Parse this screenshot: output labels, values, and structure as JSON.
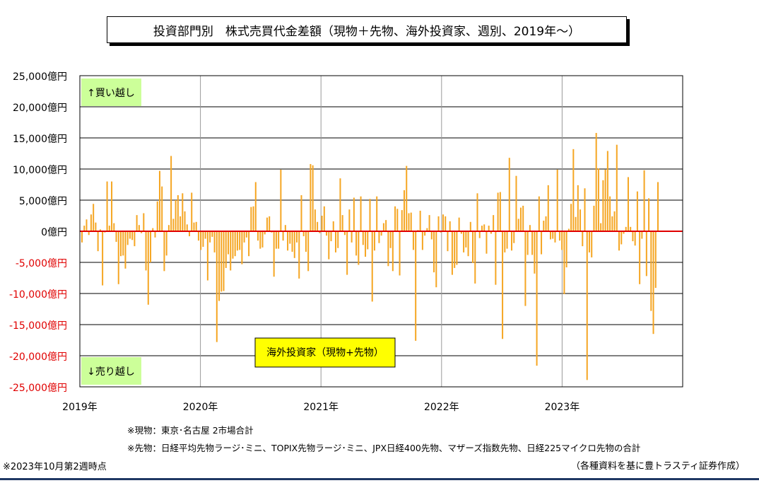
{
  "title": "投資部門別　株式売買代金差額（現物＋先物、海外投資家、週別、2019年～）",
  "chart_data": {
    "type": "bar",
    "series": [
      {
        "name": "海外投資家（現物+先物）",
        "color": "#f5a623"
      }
    ],
    "ylim": [
      -25000,
      25000
    ],
    "yticks": [
      {
        "value": 25000,
        "label": "25,000億円"
      },
      {
        "value": 20000,
        "label": "20,000億円"
      },
      {
        "value": 15000,
        "label": "15,000億円"
      },
      {
        "value": 10000,
        "label": "10,000億円"
      },
      {
        "value": 5000,
        "label": "5,000億円"
      },
      {
        "value": 0,
        "label": "0億円"
      },
      {
        "value": -5000,
        "label": "-5,000億円"
      },
      {
        "value": -10000,
        "label": "-10,000億円"
      },
      {
        "value": -15000,
        "label": "-15,000億円"
      },
      {
        "value": -20000,
        "label": "-20,000億円"
      },
      {
        "value": -25000,
        "label": "-25,000億円"
      }
    ],
    "xticks": [
      "2019年",
      "2020年",
      "2021年",
      "2022年",
      "2023年"
    ],
    "annotations": {
      "buy": "↑買い越し",
      "sell": "↓売り越し"
    },
    "legend_label": "海外投資家（現物+先物）",
    "grid": true,
    "zero_line_color": "#e00000",
    "values": [
      -1800,
      900,
      1900,
      -600,
      2700,
      4400,
      1400,
      -3200,
      300,
      -8700,
      -200,
      8000,
      900,
      8000,
      1300,
      -1700,
      -8500,
      -4000,
      -3900,
      -6000,
      -2200,
      -1200,
      -1400,
      -2400,
      2600,
      1000,
      -300,
      2900,
      -6300,
      -11800,
      -5000,
      500,
      -1000,
      4800,
      9700,
      7200,
      -6400,
      -3900,
      1000,
      12100,
      2000,
      5000,
      5800,
      2400,
      6100,
      3200,
      1100,
      -800,
      6200,
      1400,
      1500,
      -1500,
      -3000,
      -2500,
      -1200,
      -7900,
      -1800,
      -900,
      -3400,
      -17800,
      -11200,
      -9700,
      -9600,
      -5900,
      -3700,
      -6300,
      -4400,
      -4000,
      -3100,
      -3000,
      -5300,
      -1800,
      -1000,
      -4000,
      3900,
      4000,
      7900,
      -1500,
      -2800,
      -2600,
      -500,
      2200,
      2400,
      -200,
      -7300,
      -2800,
      -2800,
      9900,
      -1500,
      1000,
      -3100,
      -2000,
      -3300,
      -4300,
      -1800,
      -7600,
      5800,
      -800,
      -3300,
      -6400,
      10800,
      10600,
      3500,
      1500,
      -300,
      2500,
      4000,
      -700,
      -4500,
      -1600,
      1600,
      -3400,
      -2700,
      8500,
      2600,
      -600,
      -7000,
      3500,
      -1800,
      5400,
      -3900,
      -5400,
      5600,
      -2200,
      -4100,
      -2900,
      5200,
      -11300,
      -3100,
      5600,
      -1900,
      -700,
      1300,
      1800,
      -5600,
      -2700,
      -6400,
      4000,
      3600,
      -7100,
      3400,
      6600,
      10500,
      2900,
      3000,
      -3000,
      -17600,
      200,
      3300,
      -3000,
      -700,
      500,
      2600,
      -1300,
      -6600,
      -9000,
      2400,
      -200,
      2700,
      2400,
      -3200,
      1600,
      -7000,
      -5900,
      -5400,
      2200,
      -400,
      -3400,
      -2600,
      -4000,
      1500,
      -5100,
      -8400,
      6100,
      -1100,
      900,
      1100,
      -3600,
      900,
      -400,
      2600,
      -8600,
      6200,
      6300,
      -17300,
      -3400,
      -2800,
      11800,
      -3100,
      -1900,
      8900,
      2000,
      3800,
      4100,
      -12000,
      -3800,
      1000,
      -3800,
      -6800,
      -21600,
      5600,
      -3700,
      1700,
      2400,
      7400,
      -1300,
      -1200,
      -1800,
      9900,
      -1500,
      -3000,
      -10100,
      -5800,
      400,
      4400,
      13200,
      2300,
      7400,
      3500,
      -2400,
      6900,
      -23900,
      -3400,
      -4200,
      4100,
      15800,
      10100,
      1300,
      8200,
      9900,
      12900,
      5600,
      2400,
      3200,
      13900,
      -3100,
      -2100,
      -400,
      700,
      8700,
      700,
      -1600,
      -2300,
      6400,
      -8500,
      -1200,
      9800,
      -7200,
      5300,
      -12800,
      -16500,
      -9100,
      7900
    ]
  },
  "notes": {
    "legend_box": "海外投資家（現物+先物）",
    "spot": "※現物：東京･名古屋 2市場合計",
    "futures": "※先物：日経平均先物ラージ･ミニ、TOPIX先物ラージ･ミニ、JPX日経400先物、マザーズ指数先物、日経225マイクロ先物の合計",
    "as_of": "※2023年10月第2週時点",
    "source": "（各種資料を基に豊トラスティ証券作成）"
  }
}
